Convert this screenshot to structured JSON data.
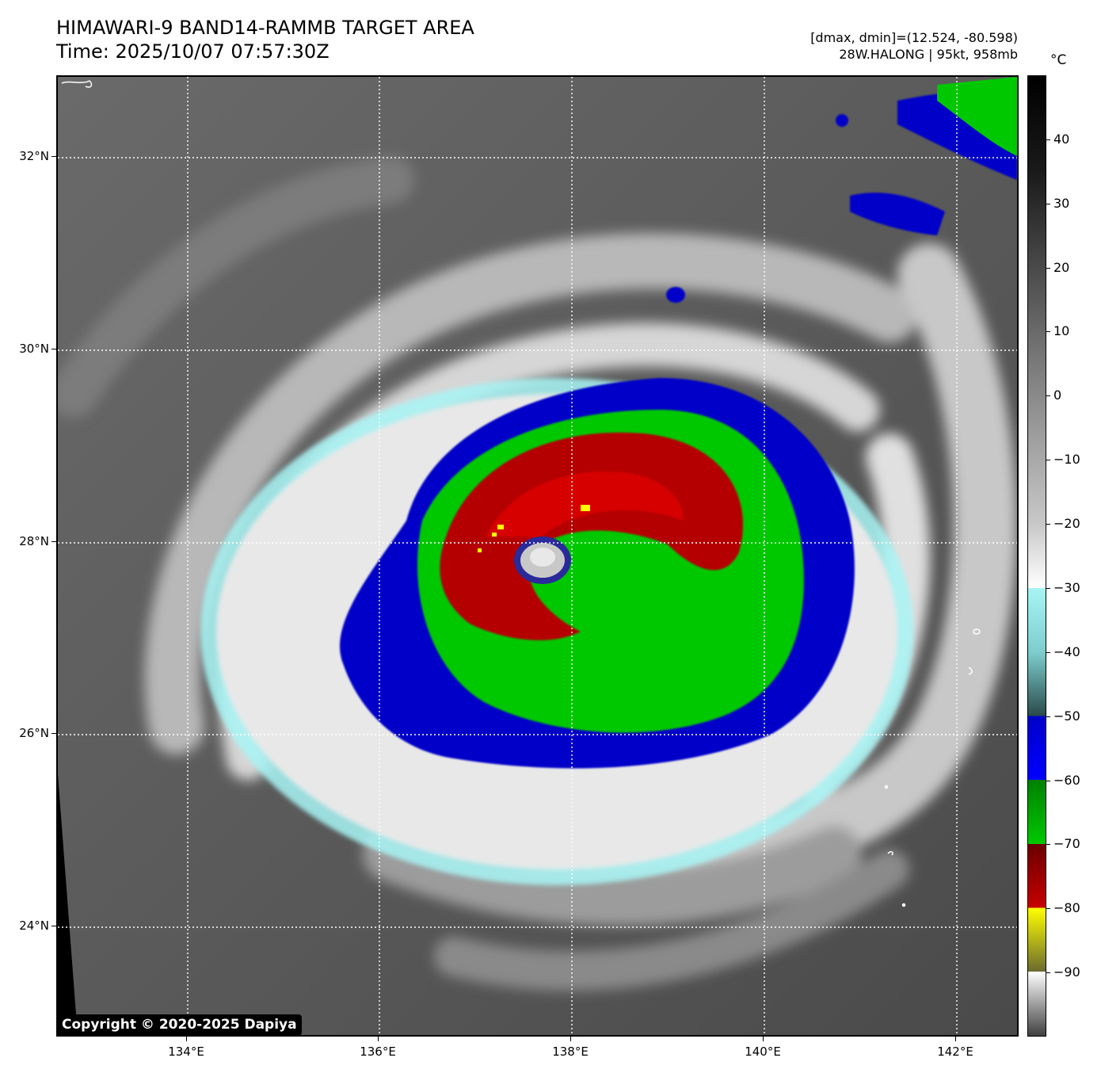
{
  "header": {
    "title_line1": "HIMAWARI-9 BAND14-RAMMB TARGET AREA",
    "title_line2": "Time: 2025/10/07 07:57:30Z",
    "info_line1": "[dmax, dmin]=(12.524, -80.598)",
    "info_line2": "28W.HALONG | 95kt, 958mb"
  },
  "copyright": "Copyright © 2020-2025 Dapiya",
  "axes": {
    "lat_labels": [
      "32°N",
      "30°N",
      "28°N",
      "26°N",
      "24°N"
    ],
    "lon_labels": [
      "134°E",
      "136°E",
      "138°E",
      "140°E",
      "142°E"
    ]
  },
  "colorbar": {
    "unit": "°C",
    "labels": [
      "40",
      "30",
      "20",
      "10",
      "0",
      "−10",
      "−20",
      "−30",
      "−40",
      "−50",
      "−60",
      "−70",
      "−80",
      "−90"
    ],
    "range": [
      -100,
      50
    ],
    "colors": {
      "warm": "#000000",
      "gray": "#8a8a8a",
      "white": "#ffffff",
      "cyan": "#a8f4f4",
      "blue": "#0000c8",
      "green": "#00c800",
      "red": "#c80000",
      "yellow": "#ffff00"
    }
  },
  "image": {
    "subject": "Typhoon 28W HALONG infrared satellite image",
    "eye_color": "#c8c8c8"
  }
}
